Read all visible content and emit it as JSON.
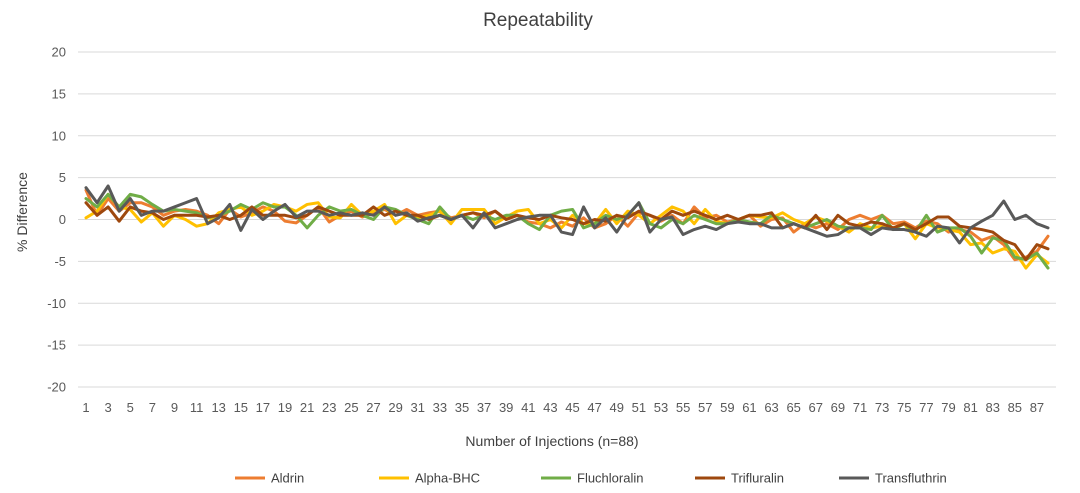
{
  "chart_data": {
    "type": "line",
    "title": "Repeatability",
    "xlabel": "Number of Injections (n=88)",
    "ylabel": "% Difference",
    "ylim": [
      -20,
      20
    ],
    "yticks": [
      20,
      15,
      10,
      5,
      0,
      -5,
      -10,
      -15,
      -20
    ],
    "grid": true,
    "legend_position": "bottom",
    "x": [
      1,
      2,
      3,
      4,
      5,
      6,
      7,
      8,
      9,
      10,
      11,
      12,
      13,
      14,
      15,
      16,
      17,
      18,
      19,
      20,
      21,
      22,
      23,
      24,
      25,
      26,
      27,
      28,
      29,
      30,
      31,
      32,
      33,
      34,
      35,
      36,
      37,
      38,
      39,
      40,
      41,
      42,
      43,
      44,
      45,
      46,
      47,
      48,
      49,
      50,
      51,
      52,
      53,
      54,
      55,
      56,
      57,
      58,
      59,
      60,
      61,
      62,
      63,
      64,
      65,
      66,
      67,
      68,
      69,
      70,
      71,
      72,
      73,
      74,
      75,
      76,
      77,
      78,
      79,
      80,
      81,
      82,
      83,
      84,
      85,
      86,
      87,
      88
    ],
    "xtick_labels": [
      "1",
      "3",
      "5",
      "7",
      "9",
      "11",
      "13",
      "15",
      "17",
      "19",
      "21",
      "23",
      "25",
      "27",
      "29",
      "31",
      "33",
      "35",
      "37",
      "39",
      "41",
      "43",
      "45",
      "47",
      "49",
      "51",
      "53",
      "55",
      "57",
      "59",
      "61",
      "63",
      "65",
      "67",
      "69",
      "71",
      "73",
      "75",
      "77",
      "79",
      "81",
      "83",
      "85",
      "87"
    ],
    "series": [
      {
        "name": "Aldrin",
        "color": "#ED7D31",
        "values": [
          3.5,
          0.5,
          2.5,
          1.0,
          2.0,
          2.0,
          1.5,
          0.5,
          1.0,
          1.2,
          1.0,
          0.5,
          -0.5,
          1.2,
          0.3,
          0.8,
          1.5,
          1.0,
          -0.2,
          -0.4,
          0.5,
          1.5,
          -0.3,
          0.5,
          1.0,
          0.3,
          0.8,
          1.2,
          0.5,
          1.2,
          0.5,
          0.8,
          1.0,
          0.2,
          0.5,
          0.8,
          0.2,
          1.0,
          0.0,
          0.5,
          -0.3,
          -0.5,
          -1.0,
          -0.3,
          -0.8,
          0.2,
          -1.0,
          -0.5,
          0.5,
          -0.8,
          0.8,
          0.5,
          -0.2,
          0.5,
          -0.5,
          1.5,
          0.2,
          0.5,
          -0.3,
          0.0,
          0.5,
          -0.8,
          0.0,
          0.2,
          -1.5,
          -0.5,
          -1.0,
          -0.5,
          -1.2,
          0.0,
          0.5,
          0.0,
          0.5,
          -0.5,
          -0.3,
          -1.0,
          -0.2,
          -0.5,
          -1.5,
          -1.2,
          -1.5,
          -2.5,
          -2.0,
          -3.0,
          -4.8,
          -4.5,
          -3.8,
          -2.0
        ]
      },
      {
        "name": "Alpha-BHC",
        "color": "#FFC000",
        "values": [
          0.2,
          1.0,
          3.0,
          1.5,
          1.2,
          -0.3,
          0.8,
          -0.8,
          0.5,
          0.0,
          -0.8,
          -0.5,
          0.8,
          1.2,
          1.5,
          0.5,
          1.0,
          1.8,
          1.5,
          1.0,
          1.8,
          2.0,
          0.3,
          0.2,
          1.8,
          0.5,
          1.0,
          1.8,
          -0.5,
          0.5,
          0.2,
          0.5,
          1.0,
          -0.5,
          1.2,
          1.2,
          1.2,
          -0.5,
          0.3,
          1.0,
          1.2,
          -0.5,
          0.0,
          -1.0,
          0.5,
          -0.5,
          -0.5,
          1.2,
          -0.5,
          1.0,
          0.5,
          -0.5,
          0.5,
          1.5,
          1.0,
          -0.5,
          1.2,
          -0.2,
          -0.5,
          0.0,
          0.5,
          0.3,
          0.2,
          0.8,
          0.0,
          -0.5,
          0.3,
          -0.2,
          -0.8,
          -1.5,
          -0.5,
          -1.0,
          -0.8,
          -1.0,
          -0.5,
          -2.3,
          -0.5,
          -1.0,
          -1.2,
          -1.5,
          -3.0,
          -2.8,
          -4.0,
          -3.5,
          -3.8,
          -5.8,
          -4.2,
          -5.2
        ]
      },
      {
        "name": "Fluchloralin",
        "color": "#70AD47",
        "values": [
          2.5,
          1.5,
          3.0,
          1.5,
          3.0,
          2.7,
          1.8,
          1.0,
          1.2,
          1.0,
          0.8,
          0.2,
          0.5,
          1.0,
          1.8,
          1.2,
          2.0,
          1.5,
          1.5,
          0.5,
          -1.0,
          0.5,
          1.5,
          1.0,
          1.2,
          0.5,
          0.0,
          1.5,
          1.2,
          0.5,
          0.0,
          -0.5,
          1.5,
          0.0,
          0.5,
          0.0,
          0.5,
          0.0,
          0.5,
          0.5,
          -0.5,
          -1.2,
          0.5,
          1.0,
          1.2,
          -1.0,
          -0.5,
          0.5,
          0.0,
          0.5,
          2.0,
          -0.5,
          -1.0,
          0.0,
          -0.5,
          0.5,
          0.0,
          -0.5,
          -0.5,
          0.0,
          -0.3,
          -0.5,
          0.5,
          0.0,
          -0.5,
          -1.0,
          -0.5,
          0.0,
          -0.8,
          -1.0,
          -1.0,
          -1.2,
          0.5,
          -1.2,
          -0.5,
          -1.5,
          0.5,
          -1.5,
          -1.0,
          -1.0,
          -2.0,
          -4.0,
          -2.2,
          -2.5,
          -4.5,
          -4.8,
          -4.0,
          -5.8
        ]
      },
      {
        "name": "Trifluralin",
        "color": "#9E480E",
        "values": [
          2.0,
          0.5,
          1.5,
          -0.2,
          1.5,
          1.0,
          0.8,
          0.0,
          0.5,
          0.5,
          0.5,
          0.3,
          0.5,
          0.0,
          0.5,
          1.5,
          0.5,
          0.5,
          0.5,
          0.2,
          0.5,
          1.5,
          1.0,
          0.5,
          0.5,
          0.5,
          1.5,
          0.5,
          1.0,
          0.5,
          0.5,
          0.0,
          0.5,
          0.0,
          0.5,
          0.8,
          0.5,
          1.0,
          0.0,
          0.5,
          0.2,
          0.0,
          0.5,
          0.2,
          0.0,
          -0.5,
          0.0,
          -0.2,
          0.5,
          0.2,
          1.0,
          0.5,
          0.0,
          1.0,
          0.5,
          1.0,
          0.5,
          0.0,
          0.5,
          0.0,
          0.5,
          0.5,
          0.8,
          -1.0,
          -0.5,
          -1.0,
          0.5,
          -1.2,
          0.5,
          -0.5,
          -0.8,
          -0.3,
          -0.5,
          -1.0,
          -0.5,
          -1.2,
          -0.5,
          0.3,
          0.3,
          -0.8,
          -1.0,
          -1.2,
          -1.5,
          -2.5,
          -3.0,
          -4.8,
          -3.0,
          -3.5
        ]
      },
      {
        "name": "Transfluthrin",
        "color": "#595959",
        "values": [
          3.8,
          2.0,
          4.0,
          1.0,
          2.5,
          0.5,
          1.0,
          1.0,
          1.5,
          2.0,
          2.5,
          -0.5,
          0.2,
          1.8,
          -1.3,
          1.2,
          0.0,
          1.0,
          1.8,
          0.3,
          1.0,
          1.0,
          0.5,
          0.8,
          0.5,
          0.8,
          0.5,
          1.5,
          0.5,
          0.8,
          -0.2,
          0.2,
          0.5,
          0.0,
          0.5,
          -1.0,
          0.8,
          -1.0,
          -0.5,
          0.0,
          0.3,
          0.5,
          0.5,
          -1.5,
          -1.8,
          1.5,
          -1.0,
          0.2,
          -1.5,
          0.5,
          2.0,
          -1.5,
          0.0,
          0.3,
          -1.8,
          -1.2,
          -0.8,
          -1.2,
          -0.5,
          -0.3,
          -0.5,
          -0.5,
          -1.0,
          -1.0,
          -0.5,
          -1.0,
          -1.5,
          -2.0,
          -1.8,
          -1.0,
          -1.0,
          -1.8,
          -1.0,
          -1.2,
          -1.2,
          -1.5,
          -2.0,
          -0.8,
          -1.0,
          -2.8,
          -1.0,
          -0.2,
          0.5,
          2.2,
          0.0,
          0.5,
          -0.5,
          -1.0
        ]
      }
    ]
  }
}
